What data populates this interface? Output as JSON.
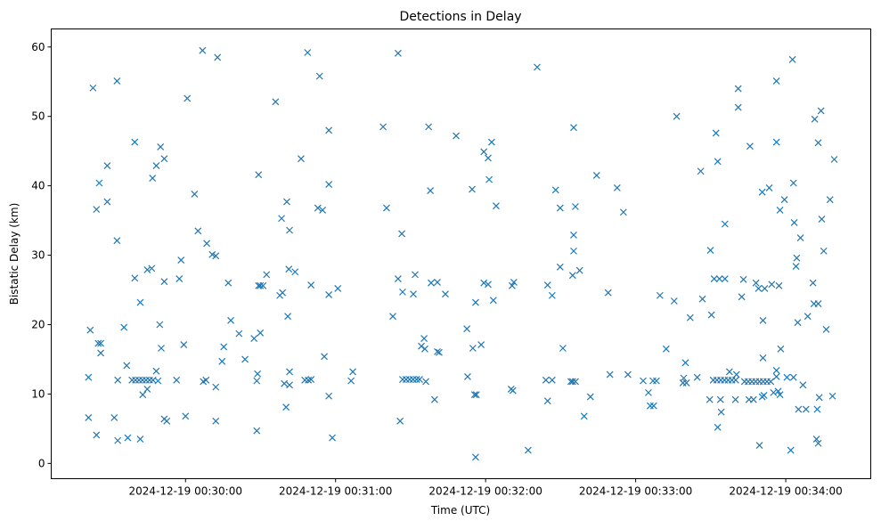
{
  "chart_data": {
    "type": "scatter",
    "title": "Detections in Delay",
    "xlabel": "Time (UTC)",
    "ylabel": "Bistatic Delay (km)",
    "x_unit": "seconds after 2024-12-19 00:29:00",
    "xlim": [
      6.3,
      334
    ],
    "ylim": [
      -2.2,
      62.6
    ],
    "grid": false,
    "marker": "x",
    "color": "#1f77b4",
    "x_ticks": [
      {
        "value": 60,
        "label": "2024-12-19 00:30:00"
      },
      {
        "value": 120,
        "label": "2024-12-19 00:31:00"
      },
      {
        "value": 180,
        "label": "2024-12-19 00:32:00"
      },
      {
        "value": 240,
        "label": "2024-12-19 00:33:00"
      },
      {
        "value": 300,
        "label": "2024-12-19 00:34:00"
      }
    ],
    "y_ticks": [
      {
        "value": 0,
        "label": "0"
      },
      {
        "value": 10,
        "label": "10"
      },
      {
        "value": 20,
        "label": "20"
      },
      {
        "value": 30,
        "label": "30"
      },
      {
        "value": 40,
        "label": "40"
      },
      {
        "value": 50,
        "label": "50"
      },
      {
        "value": 60,
        "label": "60"
      }
    ],
    "points": [
      [
        21.2,
        6.6
      ],
      [
        21.2,
        12.4
      ],
      [
        21.9,
        19.2
      ],
      [
        23,
        54.1
      ],
      [
        24.4,
        4.1
      ],
      [
        24.4,
        36.6
      ],
      [
        25.1,
        17.3
      ],
      [
        26.1,
        17.3
      ],
      [
        26.1,
        15.9
      ],
      [
        25.5,
        40.4
      ],
      [
        28.7,
        37.7
      ],
      [
        28.7,
        42.9
      ],
      [
        31.5,
        6.6
      ],
      [
        32.9,
        3.3
      ],
      [
        32.6,
        55.1
      ],
      [
        32.6,
        32.1
      ],
      [
        32.9,
        12.0
      ],
      [
        35.4,
        19.6
      ],
      [
        36.5,
        14.1
      ],
      [
        36.9,
        3.7
      ],
      [
        39.7,
        46.3
      ],
      [
        39.7,
        26.7
      ],
      [
        38.6,
        12.0
      ],
      [
        40,
        12.0
      ],
      [
        41.4,
        12.0
      ],
      [
        42.8,
        12.0
      ],
      [
        44.2,
        12.0
      ],
      [
        45.6,
        12.0
      ],
      [
        47,
        12.0
      ],
      [
        49,
        11.9
      ],
      [
        41.9,
        23.2
      ],
      [
        41.9,
        3.5
      ],
      [
        42.9,
        9.9
      ],
      [
        44.7,
        10.7
      ],
      [
        44.7,
        27.9
      ],
      [
        46.5,
        28.1
      ],
      [
        46.8,
        41.1
      ],
      [
        48.3,
        42.9
      ],
      [
        48.3,
        13.3
      ],
      [
        49.7,
        20.0
      ],
      [
        50,
        45.6
      ],
      [
        50.3,
        16.6
      ],
      [
        51.5,
        43.9
      ],
      [
        51.5,
        26.2
      ],
      [
        51.5,
        6.4
      ],
      [
        52.5,
        6.1
      ],
      [
        56.4,
        12.0
      ],
      [
        57.5,
        26.6
      ],
      [
        58.2,
        29.3
      ],
      [
        59.3,
        17.1
      ],
      [
        60,
        6.8
      ],
      [
        60.7,
        52.6
      ],
      [
        63.6,
        38.8
      ],
      [
        65,
        33.5
      ],
      [
        66.8,
        59.5
      ],
      [
        67.1,
        11.8
      ],
      [
        68.2,
        12.0
      ],
      [
        68.5,
        31.7
      ],
      [
        70.7,
        30.1
      ],
      [
        72.1,
        29.9
      ],
      [
        72.1,
        11.0
      ],
      [
        72.1,
        6.1
      ],
      [
        72.8,
        58.5
      ],
      [
        74.6,
        14.7
      ],
      [
        75.3,
        16.8
      ],
      [
        77.1,
        26.0
      ],
      [
        78.1,
        20.6
      ],
      [
        81.4,
        18.7
      ],
      [
        83.8,
        15.0
      ],
      [
        87.4,
        18.0
      ],
      [
        88.5,
        4.7
      ],
      [
        88.5,
        11.9
      ],
      [
        88.8,
        12.9
      ],
      [
        89.2,
        41.6
      ],
      [
        89.2,
        25.6
      ],
      [
        89.9,
        25.6
      ],
      [
        91,
        25.6
      ],
      [
        89.9,
        18.8
      ],
      [
        92.4,
        27.2
      ],
      [
        96,
        52.1
      ],
      [
        97.7,
        24.2
      ],
      [
        98.4,
        35.3
      ],
      [
        98.8,
        24.6
      ],
      [
        99.5,
        11.5
      ],
      [
        100.2,
        8.1
      ],
      [
        100.5,
        37.7
      ],
      [
        101.3,
        28.0
      ],
      [
        101.6,
        33.6
      ],
      [
        100.9,
        21.2
      ],
      [
        101.6,
        11.3
      ],
      [
        101.6,
        13.2
      ],
      [
        103.8,
        27.6
      ],
      [
        106.2,
        43.9
      ],
      [
        107.7,
        12.0
      ],
      [
        108.8,
        59.2
      ],
      [
        109.1,
        12.0
      ],
      [
        110.2,
        25.7
      ],
      [
        110.2,
        12.1
      ],
      [
        112.9,
        36.8
      ],
      [
        113.6,
        55.8
      ],
      [
        114.8,
        36.5
      ],
      [
        115.5,
        15.4
      ],
      [
        117.3,
        48.0
      ],
      [
        117.3,
        40.2
      ],
      [
        117.3,
        24.3
      ],
      [
        117.3,
        9.7
      ],
      [
        118.7,
        3.7
      ],
      [
        120.9,
        25.2
      ],
      [
        126.2,
        11.9
      ],
      [
        126.9,
        13.2
      ],
      [
        139,
        48.5
      ],
      [
        140.4,
        36.8
      ],
      [
        142.9,
        21.2
      ],
      [
        145,
        26.6
      ],
      [
        145,
        59.1
      ],
      [
        145.8,
        6.1
      ],
      [
        146.5,
        33.1
      ],
      [
        146.8,
        24.7
      ],
      [
        146.8,
        12.1
      ],
      [
        148.2,
        12.1
      ],
      [
        149.6,
        12.1
      ],
      [
        151,
        12.1
      ],
      [
        152.4,
        12.1
      ],
      [
        153.6,
        12.1
      ],
      [
        151.1,
        24.4
      ],
      [
        151.8,
        27.2
      ],
      [
        154.3,
        16.9
      ],
      [
        155.4,
        18.0
      ],
      [
        155.7,
        16.5
      ],
      [
        156.1,
        11.8
      ],
      [
        157.2,
        48.5
      ],
      [
        157.9,
        39.3
      ],
      [
        158.2,
        26.0
      ],
      [
        159.6,
        9.2
      ],
      [
        160.7,
        26.1
      ],
      [
        160.7,
        16.1
      ],
      [
        161.4,
        16.0
      ],
      [
        163.9,
        24.4
      ],
      [
        168.2,
        47.2
      ],
      [
        172.5,
        19.4
      ],
      [
        172.8,
        12.5
      ],
      [
        174.6,
        39.5
      ],
      [
        174.9,
        16.6
      ],
      [
        175.6,
        9.9
      ],
      [
        176.3,
        9.9
      ],
      [
        176,
        0.9
      ],
      [
        176,
        23.2
      ],
      [
        178.2,
        17.1
      ],
      [
        179.3,
        44.9
      ],
      [
        179.3,
        26.0
      ],
      [
        181,
        44.0
      ],
      [
        181,
        25.8
      ],
      [
        181.4,
        40.9
      ],
      [
        182.4,
        46.3
      ],
      [
        183.1,
        23.5
      ],
      [
        184.2,
        37.1
      ],
      [
        190.2,
        10.7
      ],
      [
        190.6,
        25.6
      ],
      [
        190.9,
        10.5
      ],
      [
        191.3,
        26.1
      ],
      [
        197,
        1.9
      ],
      [
        200.6,
        57.1
      ],
      [
        204.1,
        12.0
      ],
      [
        204.8,
        25.7
      ],
      [
        204.8,
        9.0
      ],
      [
        206.6,
        24.2
      ],
      [
        206.6,
        12.0
      ],
      [
        208,
        39.4
      ],
      [
        209.8,
        36.8
      ],
      [
        209.8,
        28.3
      ],
      [
        210.9,
        16.6
      ],
      [
        214.1,
        11.8
      ],
      [
        214.8,
        11.8
      ],
      [
        215.9,
        11.8
      ],
      [
        215.2,
        48.4
      ],
      [
        214.8,
        27.1
      ],
      [
        215.2,
        32.9
      ],
      [
        215.2,
        30.6
      ],
      [
        215.9,
        37.0
      ],
      [
        217.6,
        27.8
      ],
      [
        219.4,
        6.8
      ],
      [
        221.9,
        9.6
      ],
      [
        224.4,
        41.5
      ],
      [
        229,
        24.6
      ],
      [
        229.7,
        12.8
      ],
      [
        232.6,
        39.7
      ],
      [
        235.1,
        36.2
      ],
      [
        236.9,
        12.8
      ],
      [
        243,
        11.9
      ],
      [
        245.1,
        10.2
      ],
      [
        245.8,
        8.3
      ],
      [
        247.2,
        8.3
      ],
      [
        246.9,
        11.9
      ],
      [
        248.3,
        11.9
      ],
      [
        249.7,
        24.2
      ],
      [
        252.2,
        16.5
      ],
      [
        255.4,
        23.4
      ],
      [
        256.4,
        50.0
      ],
      [
        258.9,
        11.6
      ],
      [
        259.2,
        12.3
      ],
      [
        259.9,
        14.5
      ],
      [
        260.3,
        11.6
      ],
      [
        261.8,
        21.0
      ],
      [
        264.6,
        12.4
      ],
      [
        266,
        42.1
      ],
      [
        266.7,
        23.7
      ],
      [
        269.6,
        9.2
      ],
      [
        269.9,
        30.7
      ],
      [
        270.3,
        21.4
      ],
      [
        271,
        12.0
      ],
      [
        272.5,
        12.0
      ],
      [
        274,
        12.0
      ],
      [
        275.5,
        12.0
      ],
      [
        277,
        12.0
      ],
      [
        278.5,
        12.0
      ],
      [
        280,
        12.0
      ],
      [
        271.4,
        26.6
      ],
      [
        272.1,
        47.6
      ],
      [
        272.8,
        43.5
      ],
      [
        272.8,
        5.2
      ],
      [
        273.5,
        26.6
      ],
      [
        273.9,
        9.2
      ],
      [
        274.2,
        7.4
      ],
      [
        275.7,
        26.6
      ],
      [
        275.7,
        34.5
      ],
      [
        277.5,
        13.2
      ],
      [
        279.9,
        9.2
      ],
      [
        280.3,
        12.8
      ],
      [
        281,
        54.0
      ],
      [
        281,
        51.3
      ],
      [
        282.4,
        24.0
      ],
      [
        283.1,
        26.5
      ],
      [
        283.5,
        11.8
      ],
      [
        285,
        11.8
      ],
      [
        286.5,
        11.8
      ],
      [
        288,
        11.8
      ],
      [
        289.5,
        11.8
      ],
      [
        291,
        11.8
      ],
      [
        292.5,
        11.8
      ],
      [
        294,
        11.8
      ],
      [
        285.3,
        9.2
      ],
      [
        285.7,
        45.7
      ],
      [
        287.1,
        9.2
      ],
      [
        288.1,
        26.0
      ],
      [
        289.1,
        25.2
      ],
      [
        289.5,
        2.6
      ],
      [
        290.6,
        9.6
      ],
      [
        291.3,
        9.8
      ],
      [
        290.6,
        39.1
      ],
      [
        290.9,
        15.2
      ],
      [
        290.9,
        20.6
      ],
      [
        291.6,
        25.2
      ],
      [
        293.4,
        39.7
      ],
      [
        294.4,
        25.8
      ],
      [
        295.1,
        10.2
      ],
      [
        296.3,
        55.1
      ],
      [
        296.3,
        46.3
      ],
      [
        296.3,
        13.4
      ],
      [
        296.3,
        12.5
      ],
      [
        297,
        10.4
      ],
      [
        297.3,
        25.6
      ],
      [
        297.7,
        36.5
      ],
      [
        298,
        16.5
      ],
      [
        297.7,
        9.9
      ],
      [
        299.5,
        38.0
      ],
      [
        300.5,
        12.4
      ],
      [
        302,
        1.9
      ],
      [
        302.7,
        58.2
      ],
      [
        303.1,
        40.4
      ],
      [
        303.1,
        12.4
      ],
      [
        303.4,
        34.7
      ],
      [
        304.1,
        28.4
      ],
      [
        304.4,
        29.6
      ],
      [
        304.8,
        20.3
      ],
      [
        305.1,
        7.8
      ],
      [
        305.9,
        32.5
      ],
      [
        306.9,
        11.3
      ],
      [
        308.1,
        7.8
      ],
      [
        308.8,
        21.2
      ],
      [
        310.9,
        26.0
      ],
      [
        311.6,
        49.6
      ],
      [
        311.3,
        23.0
      ],
      [
        312.3,
        3.5
      ],
      [
        313,
        46.2
      ],
      [
        313,
        23.0
      ],
      [
        312.6,
        7.8
      ],
      [
        313,
        2.9
      ],
      [
        313.4,
        9.5
      ],
      [
        314.1,
        50.8
      ],
      [
        314.4,
        35.2
      ],
      [
        315.2,
        30.6
      ],
      [
        316.2,
        19.3
      ],
      [
        317.7,
        38.0
      ],
      [
        318.7,
        9.7
      ],
      [
        319.4,
        43.8
      ]
    ]
  }
}
